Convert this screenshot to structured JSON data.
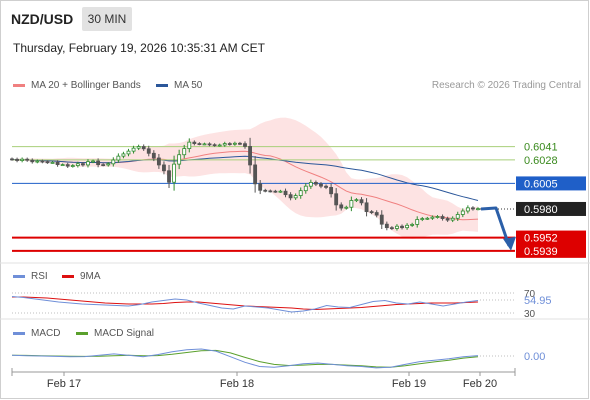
{
  "header": {
    "symbol": "NZD/USD",
    "timeframe": "30 MIN",
    "datetime": "Thursday, February 19, 2026 10:35:31 AM CET",
    "credit": "Research © 2026 Trading Central"
  },
  "legends": {
    "price": [
      {
        "label": "MA 20 + Bollinger Bands",
        "color": "#f08080"
      },
      {
        "label": "MA 50",
        "color": "#2b579a"
      }
    ],
    "rsi": [
      {
        "label": "RSI",
        "color": "#6f8fd8"
      },
      {
        "label": "9MA",
        "color": "#dd1111"
      }
    ],
    "macd": [
      {
        "label": "MACD",
        "color": "#6f8fd8"
      },
      {
        "label": "MACD Signal",
        "color": "#5aa02c"
      }
    ]
  },
  "colors": {
    "resistance": "#a8cf7a",
    "pivot": "#1f5fc8",
    "support": "#dd0000",
    "bollinger_fill": "#fde3e3",
    "candle_up": "#2e8b2e",
    "candle_down": "#555555",
    "arrow": "#2b5fa8"
  },
  "chart_data": [
    {
      "type": "candlestick",
      "panel": "price",
      "x_ticks": [
        "Feb 17",
        "Feb 18",
        "Feb 19",
        "Feb 20"
      ],
      "ylim": [
        0.5932,
        0.6071
      ],
      "close": [
        0.60286,
        0.60274,
        0.60287,
        0.60277,
        0.60262,
        0.60269,
        0.60262,
        0.60256,
        0.60256,
        0.60234,
        0.60234,
        0.60219,
        0.60225,
        0.60243,
        0.60231,
        0.60263,
        0.60269,
        0.60234,
        0.60231,
        0.60242,
        0.60279,
        0.60317,
        0.60339,
        0.60366,
        0.60395,
        0.60411,
        0.60389,
        0.60345,
        0.60299,
        0.60231,
        0.60174,
        0.60062,
        0.60239,
        0.60331,
        0.60391,
        0.60454,
        0.6044,
        0.60437,
        0.60437,
        0.60429,
        0.60423,
        0.60426,
        0.6044,
        0.60434,
        0.60443,
        0.60439,
        0.60412,
        0.60231,
        0.60046,
        0.59983,
        0.59977,
        0.59974,
        0.59971,
        0.59974,
        0.5994,
        0.59909,
        0.59931,
        0.59979,
        0.60023,
        0.6006,
        0.60043,
        0.60023,
        0.60011,
        0.59949,
        0.5984,
        0.59809,
        0.59817,
        0.59883,
        0.59891,
        0.5986,
        0.59774,
        0.59765,
        0.5974,
        0.59651,
        0.59617,
        0.59609,
        0.59631,
        0.59617,
        0.5964,
        0.59649,
        0.59697,
        0.59706,
        0.59709,
        0.5972,
        0.59726,
        0.59706,
        0.59691,
        0.59709,
        0.59746,
        0.5978,
        0.59811,
        0.598,
        0.59803
      ],
      "current_price": 0.598,
      "levels": [
        {
          "value": 0.6041,
          "label": "0.6041",
          "kind": "resistance"
        },
        {
          "value": 0.6028,
          "label": "0.6028",
          "kind": "resistance"
        },
        {
          "value": 0.6005,
          "label": "0.6005",
          "kind": "pivot"
        },
        {
          "value": 0.598,
          "label": "0.5980",
          "kind": "last"
        },
        {
          "value": 0.5952,
          "label": "0.5952",
          "kind": "support"
        },
        {
          "value": 0.5939,
          "label": "0.5939",
          "kind": "support"
        }
      ],
      "series": [
        {
          "name": "MA 20 + Bollinger Bands"
        },
        {
          "name": "MA 50"
        }
      ]
    },
    {
      "type": "line",
      "panel": "rsi",
      "ylim": [
        20,
        80
      ],
      "ticks": [
        "70",
        "30"
      ],
      "current": "54.95",
      "series": [
        {
          "name": "RSI",
          "values": [
            63,
            61,
            58,
            55,
            52,
            50,
            48,
            47,
            46,
            45,
            44,
            47,
            52,
            55,
            58,
            56,
            50,
            45,
            40,
            38,
            44,
            42,
            40,
            36,
            32,
            34,
            38,
            45,
            42,
            41,
            47,
            53,
            55,
            50,
            48,
            52,
            48,
            44,
            48,
            52,
            55
          ]
        },
        {
          "name": "9MA",
          "values": [
            62,
            62,
            61,
            60,
            58,
            56,
            54,
            52,
            50,
            49,
            48,
            48,
            48,
            49,
            51,
            52,
            52,
            50,
            48,
            46,
            44,
            43,
            42,
            41,
            40,
            38,
            37,
            38,
            39,
            40,
            41,
            43,
            45,
            47,
            48,
            49,
            50,
            50,
            50,
            51,
            52
          ]
        }
      ]
    },
    {
      "type": "line",
      "panel": "macd",
      "ylim": [
        -1,
        1
      ],
      "current": "0.00",
      "series": [
        {
          "name": "MACD",
          "values": [
            0.05,
            0.02,
            0,
            -0.03,
            -0.05,
            -0.04,
            0.05,
            0.15,
            0.05,
            -0.05,
            0.1,
            0.3,
            0.45,
            0.5,
            0.35,
            -0.05,
            -0.45,
            -0.75,
            -0.8,
            -0.7,
            -0.55,
            -0.5,
            -0.6,
            -0.7,
            -0.75,
            -0.85,
            -0.8,
            -0.6,
            -0.4,
            -0.3,
            -0.2,
            -0.05,
            0.03
          ]
        },
        {
          "name": "MACD Signal",
          "values": [
            0.05,
            0.04,
            0.02,
            0,
            -0.02,
            -0.03,
            -0.02,
            0.02,
            0.05,
            0.02,
            0.03,
            0.12,
            0.25,
            0.38,
            0.4,
            0.22,
            -0.1,
            -0.4,
            -0.6,
            -0.68,
            -0.65,
            -0.6,
            -0.6,
            -0.65,
            -0.7,
            -0.78,
            -0.8,
            -0.7,
            -0.55,
            -0.42,
            -0.3,
            -0.15,
            -0.05
          ]
        }
      ]
    }
  ]
}
